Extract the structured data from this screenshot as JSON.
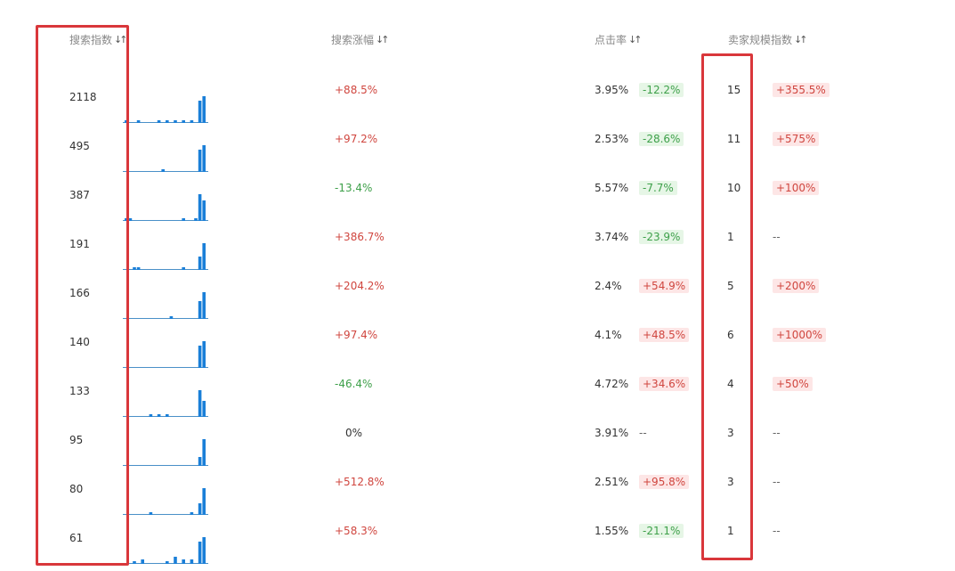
{
  "headers": {
    "search_index": "搜索指数",
    "search_growth": "搜索涨幅",
    "ctr": "点击率",
    "seller_index": "卖家规模指数"
  },
  "colors": {
    "bar": "#1a7fd8",
    "baseline": "#4a90c8",
    "highlight": "#d9373b",
    "up": "#d0463f",
    "down": "#3ea04a"
  },
  "rows": [
    {
      "index": "2118",
      "growth": "+88.5%",
      "growth_dir": "up",
      "ctr": "3.95%",
      "ctr_change": "-12.2%",
      "ctr_dir": "down",
      "seller": "15",
      "seller_change": "+355.5%",
      "seller_dir": "up",
      "trend": [
        1,
        0,
        0,
        1,
        0,
        0,
        0,
        0,
        1,
        0,
        1,
        0,
        1,
        0,
        1,
        0,
        1,
        0,
        10,
        12
      ]
    },
    {
      "index": "495",
      "growth": "+97.2%",
      "growth_dir": "up",
      "ctr": "2.53%",
      "ctr_change": "-28.6%",
      "ctr_dir": "down",
      "seller": "11",
      "seller_change": "+575%",
      "seller_dir": "up",
      "trend": [
        0,
        0,
        0,
        0,
        0,
        0,
        0,
        0,
        0,
        1,
        0,
        0,
        0,
        0,
        0,
        0,
        0,
        0,
        10,
        12
      ]
    },
    {
      "index": "387",
      "growth": "-13.4%",
      "growth_dir": "down",
      "ctr": "5.57%",
      "ctr_change": "-7.7%",
      "ctr_dir": "down",
      "seller": "10",
      "seller_change": "+100%",
      "seller_dir": "up",
      "trend": [
        1,
        1,
        0,
        0,
        0,
        0,
        0,
        0,
        0,
        0,
        0,
        0,
        0,
        0,
        1,
        0,
        0,
        1,
        12,
        9
      ]
    },
    {
      "index": "191",
      "growth": "+386.7%",
      "growth_dir": "up",
      "ctr": "3.74%",
      "ctr_change": "-23.9%",
      "ctr_dir": "down",
      "seller": "1",
      "seller_change": "--",
      "seller_dir": "none",
      "trend": [
        0,
        0,
        1,
        1,
        0,
        0,
        0,
        0,
        0,
        0,
        0,
        0,
        0,
        0,
        1,
        0,
        0,
        0,
        6,
        12
      ]
    },
    {
      "index": "166",
      "growth": "+204.2%",
      "growth_dir": "up",
      "ctr": "2.4%",
      "ctr_change": "+54.9%",
      "ctr_dir": "up",
      "seller": "5",
      "seller_change": "+200%",
      "seller_dir": "up",
      "trend": [
        0,
        0,
        0,
        0,
        0,
        0,
        0,
        0,
        0,
        0,
        0,
        1,
        0,
        0,
        0,
        0,
        0,
        0,
        8,
        12
      ]
    },
    {
      "index": "140",
      "growth": "+97.4%",
      "growth_dir": "up",
      "ctr": "4.1%",
      "ctr_change": "+48.5%",
      "ctr_dir": "up",
      "seller": "6",
      "seller_change": "+1000%",
      "seller_dir": "up",
      "trend": [
        0,
        0,
        0,
        0,
        0,
        0,
        0,
        0,
        0,
        0,
        0,
        0,
        0,
        0,
        0,
        0,
        0,
        0,
        10,
        12
      ]
    },
    {
      "index": "133",
      "growth": "-46.4%",
      "growth_dir": "down",
      "ctr": "4.72%",
      "ctr_change": "+34.6%",
      "ctr_dir": "up",
      "seller": "4",
      "seller_change": "+50%",
      "seller_dir": "up",
      "trend": [
        0,
        0,
        0,
        0,
        0,
        0,
        1,
        0,
        1,
        0,
        1,
        0,
        0,
        0,
        0,
        0,
        0,
        0,
        12,
        7
      ]
    },
    {
      "index": "95",
      "growth": "0%",
      "growth_dir": "none",
      "ctr": "3.91%",
      "ctr_change": "--",
      "ctr_dir": "none",
      "seller": "3",
      "seller_change": "--",
      "seller_dir": "none",
      "trend": [
        0,
        0,
        0,
        0,
        0,
        0,
        0,
        0,
        0,
        0,
        0,
        0,
        0,
        0,
        0,
        0,
        0,
        0,
        4,
        12
      ]
    },
    {
      "index": "80",
      "growth": "+512.8%",
      "growth_dir": "up",
      "ctr": "2.51%",
      "ctr_change": "+95.8%",
      "ctr_dir": "up",
      "seller": "3",
      "seller_change": "--",
      "seller_dir": "none",
      "trend": [
        0,
        0,
        0,
        0,
        0,
        0,
        1,
        0,
        0,
        0,
        0,
        0,
        0,
        0,
        0,
        0,
        1,
        0,
        5,
        12
      ]
    },
    {
      "index": "61",
      "growth": "+58.3%",
      "growth_dir": "up",
      "ctr": "1.55%",
      "ctr_change": "-21.1%",
      "ctr_dir": "down",
      "seller": "1",
      "seller_change": "--",
      "seller_dir": "none",
      "trend": [
        0,
        0,
        1,
        0,
        2,
        0,
        0,
        0,
        0,
        0,
        1,
        0,
        3,
        0,
        2,
        0,
        2,
        0,
        10,
        12
      ]
    }
  ]
}
